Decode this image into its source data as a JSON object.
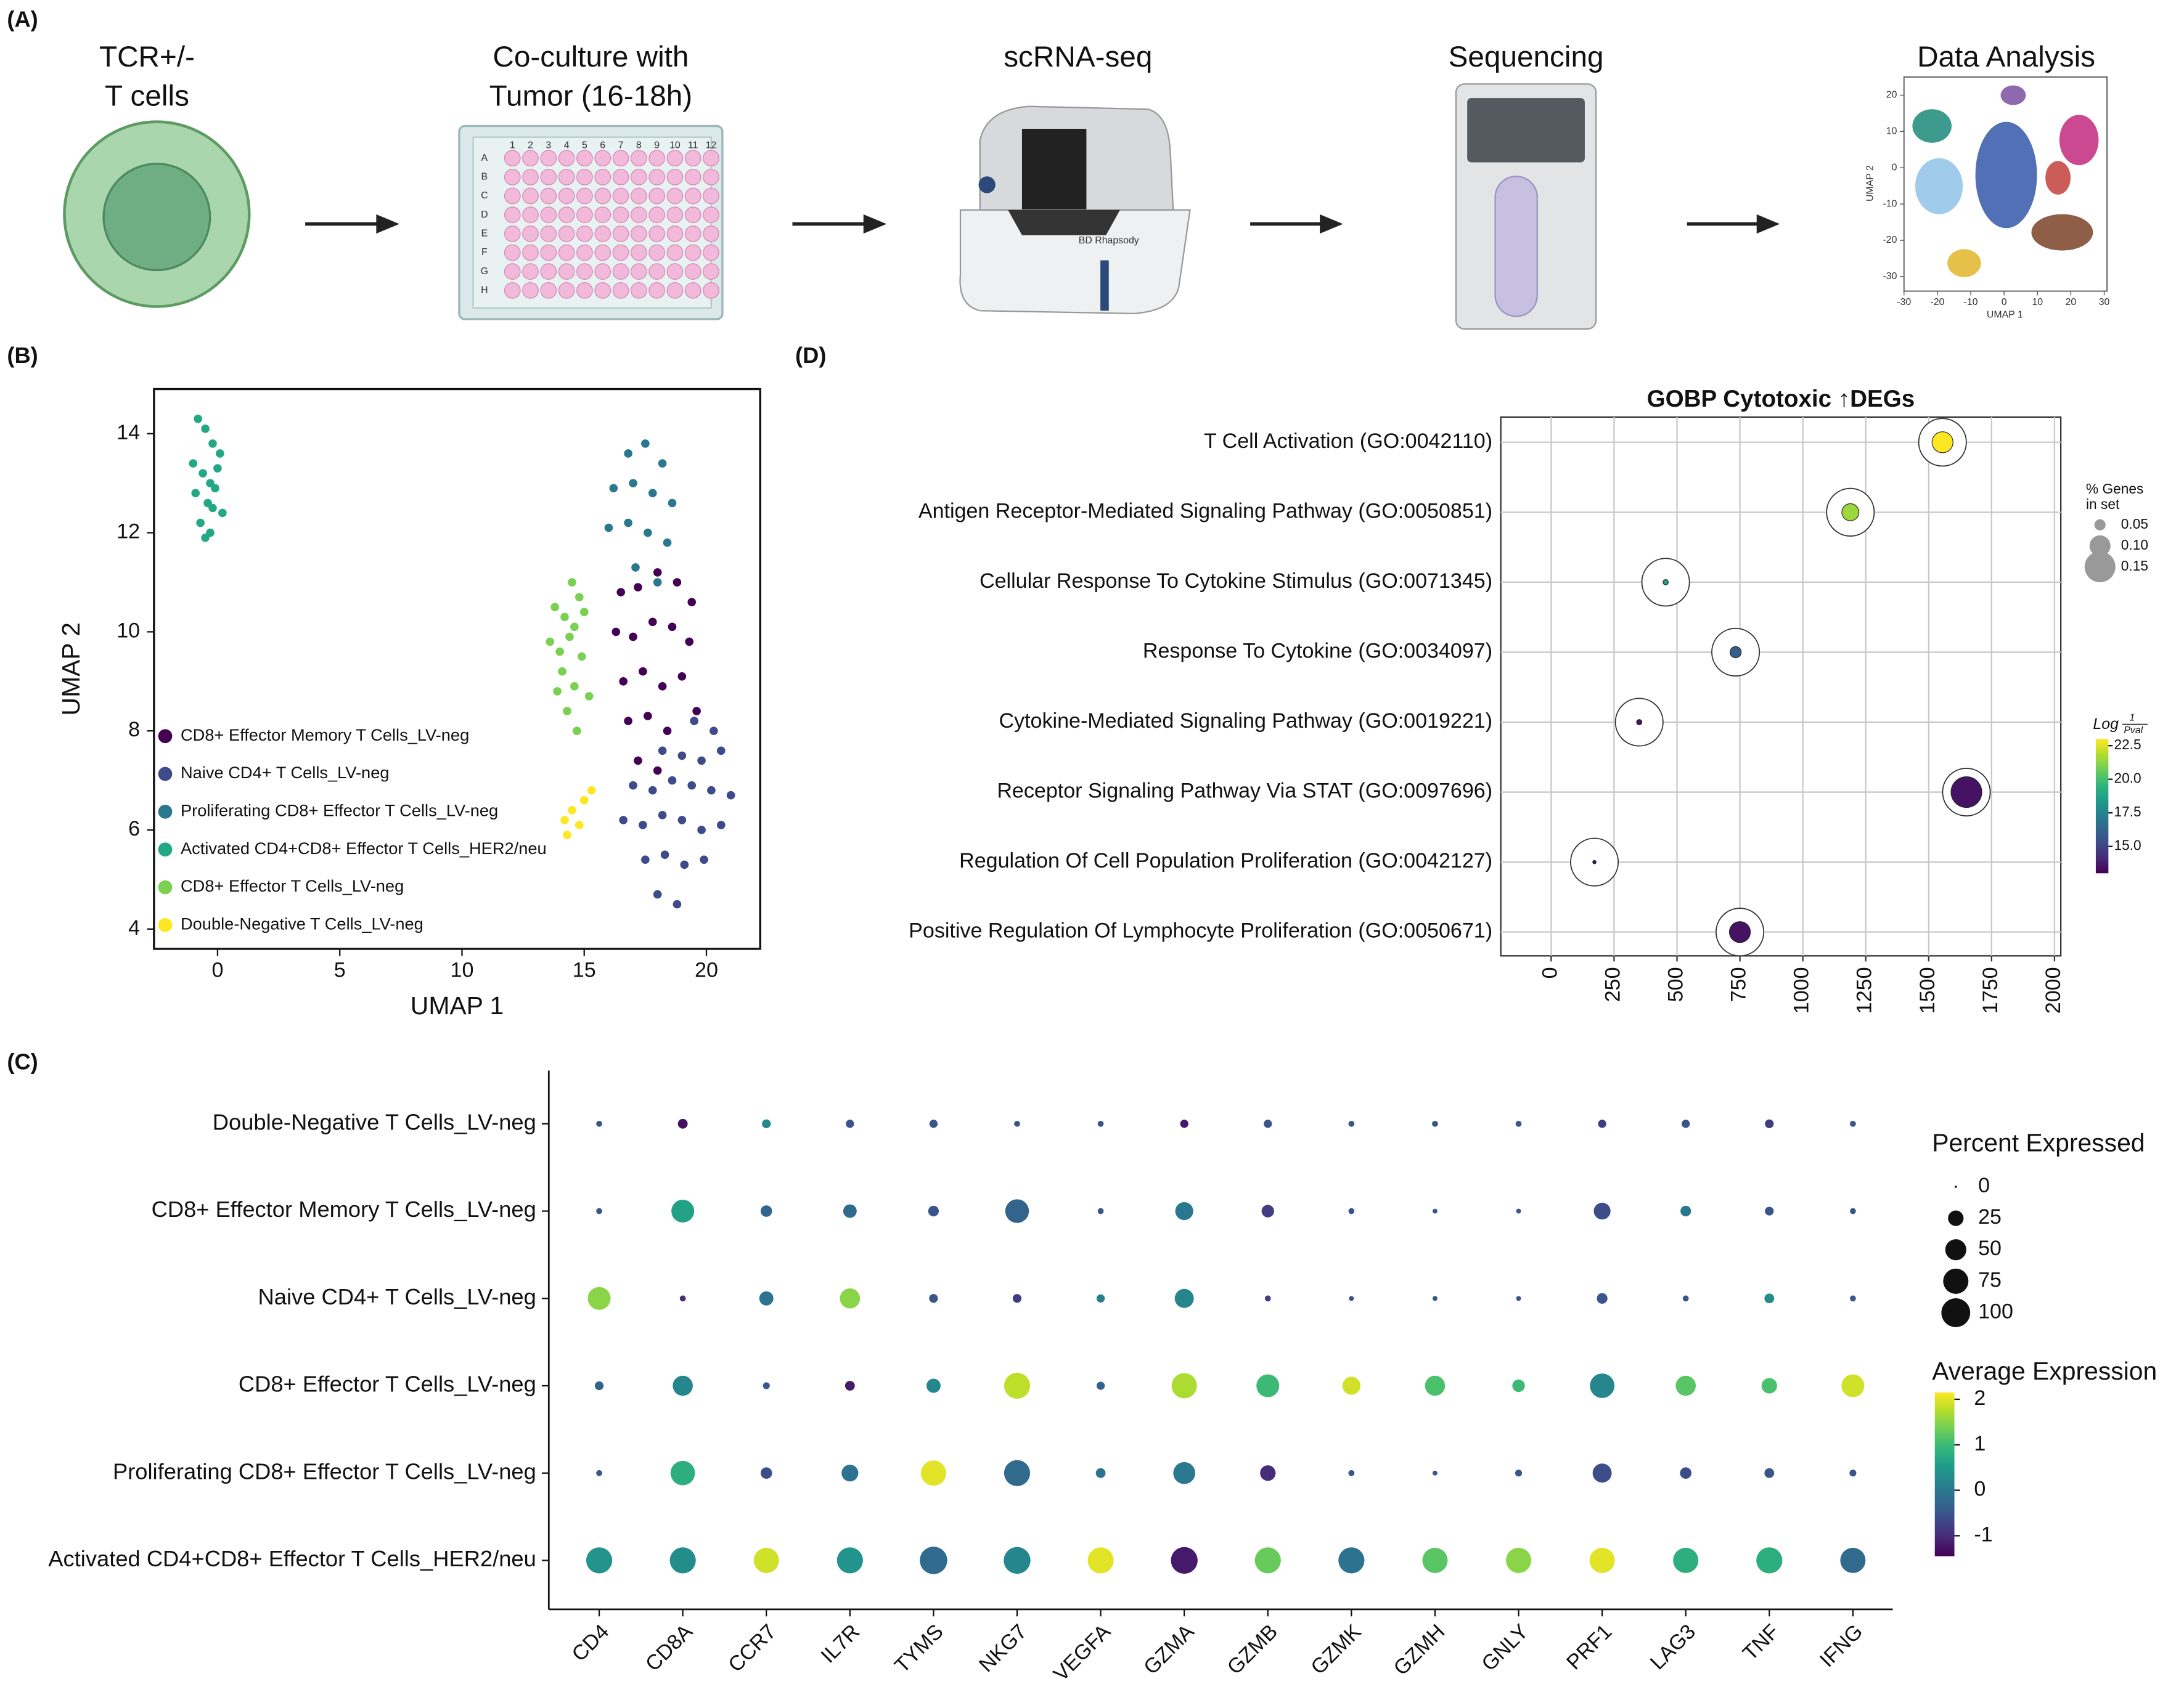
{
  "panel_labels": [
    "(A)",
    "(B)",
    "(C)",
    "(D)"
  ],
  "workflow": {
    "steps": [
      {
        "title": [
          "TCR+/-",
          "T cells"
        ]
      },
      {
        "title": [
          "Co-culture with",
          "Tumor (16-18h)"
        ]
      },
      {
        "title": [
          "scRNA-seq"
        ]
      },
      {
        "title": [
          "Sequencing"
        ]
      },
      {
        "title": [
          "Data Analysis"
        ]
      }
    ],
    "plate_columns": [
      1,
      2,
      3,
      4,
      5,
      6,
      7,
      8,
      9,
      10,
      11,
      12
    ],
    "plate_rows": [
      "A",
      "B",
      "C",
      "D",
      "E",
      "F",
      "G",
      "H"
    ],
    "instrument_label": "BD Rhapsody",
    "umap": {
      "xlabel": "UMAP 1",
      "ylabel": "UMAP 2",
      "xlim": [
        -30,
        30
      ],
      "ylim": [
        -34,
        25
      ],
      "xticks": [
        -30,
        -20,
        -10,
        0,
        10,
        20,
        30
      ],
      "yticks": [
        -30,
        -20,
        -10,
        0,
        10,
        20
      ]
    }
  },
  "chart_data": [
    {
      "type": "scatter",
      "xlabel": "UMAP 1",
      "ylabel": "UMAP 2",
      "xlim": [
        -2.6,
        22.2
      ],
      "ylim": [
        3.6,
        14.9
      ],
      "xticks": [
        0,
        5,
        10,
        15,
        20
      ],
      "yticks": [
        4,
        6,
        8,
        10,
        12,
        14
      ],
      "legend": "lower left",
      "series": [
        {
          "name": "CD8+ Effector Memory T Cells_LV-neg",
          "color": "#440154",
          "x": [
            16.5,
            17.2,
            18,
            18.8,
            19.4,
            16.3,
            17,
            17.8,
            18.6,
            19.3,
            16.6,
            17.4,
            18.2,
            19,
            16.8,
            17.6,
            18.4,
            19.6,
            17.2,
            18
          ],
          "y": [
            10.8,
            10.9,
            11.2,
            11.0,
            10.6,
            10.0,
            9.9,
            10.2,
            10.1,
            9.8,
            9.0,
            9.2,
            8.9,
            9.1,
            8.2,
            8.3,
            8.0,
            8.4,
            7.4,
            7.2
          ]
        },
        {
          "name": "Naive CD4+ T Cells_LV-neg",
          "color": "#3e4a89",
          "x": [
            19.5,
            20.3,
            18.2,
            19,
            19.8,
            20.6,
            17,
            17.8,
            18.6,
            19.4,
            20.2,
            21,
            16.6,
            17.4,
            18.2,
            19,
            19.8,
            20.6,
            17.5,
            18.3,
            19.1,
            19.9,
            18,
            18.8
          ],
          "y": [
            8.2,
            8.0,
            7.6,
            7.5,
            7.4,
            7.6,
            6.9,
            6.8,
            7.0,
            6.9,
            6.8,
            6.7,
            6.2,
            6.1,
            6.3,
            6.2,
            6.0,
            6.1,
            5.4,
            5.5,
            5.3,
            5.4,
            4.7,
            4.5
          ]
        },
        {
          "name": "Proliferating CD8+ Effector T Cells_LV-neg",
          "color": "#2a788e",
          "x": [
            16.8,
            17.5,
            18.2,
            16.2,
            17,
            17.8,
            18.6,
            16,
            16.8,
            17.6,
            18.4,
            17.1,
            18
          ],
          "y": [
            13.6,
            13.8,
            13.4,
            12.9,
            13.0,
            12.8,
            12.6,
            12.1,
            12.2,
            12.0,
            11.8,
            11.3,
            11.0
          ]
        },
        {
          "name": "Activated CD4+CD8+ Effector T Cells_HER2/neu",
          "color": "#22a884",
          "x": [
            -0.8,
            -0.5,
            -0.2,
            0.1,
            -1,
            -0.6,
            -0.3,
            0,
            -0.9,
            -0.4,
            -0.1,
            0.2,
            -0.7,
            -0.3,
            -0.5,
            -0.2
          ],
          "y": [
            14.3,
            14.1,
            13.8,
            13.6,
            13.4,
            13.2,
            13.0,
            13.3,
            12.8,
            12.6,
            12.9,
            12.4,
            12.2,
            12.0,
            11.9,
            12.5
          ]
        },
        {
          "name": "CD8+ Effector T Cells_LV-neg",
          "color": "#7ad151",
          "x": [
            14.5,
            14.8,
            13.8,
            14.2,
            14.6,
            15.0,
            13.6,
            14.0,
            14.4,
            14.9,
            14.1,
            14.6,
            13.9,
            14.3,
            15.2,
            14.7
          ],
          "y": [
            11.0,
            10.7,
            10.5,
            10.3,
            10.1,
            10.4,
            9.8,
            9.6,
            9.9,
            9.5,
            9.2,
            8.9,
            8.8,
            8.4,
            8.7,
            8.0
          ]
        },
        {
          "name": "Double-Negative T Cells_LV-neg",
          "color": "#fde725",
          "x": [
            14.2,
            14.5,
            14.8,
            14.3,
            15.3,
            15.0
          ],
          "y": [
            6.2,
            6.4,
            6.1,
            5.9,
            6.8,
            6.6
          ]
        }
      ]
    },
    {
      "type": "dotplot",
      "title": "GOBP Cytotoxic ↑DEGs",
      "categories": [
        "T Cell Activation (GO:0042110)",
        "Antigen Receptor-Mediated Signaling Pathway (GO:0050851)",
        "Cellular Response To Cytokine Stimulus (GO:0071345)",
        "Response To Cytokine (GO:0034097)",
        "Cytokine-Mediated Signaling Pathway (GO:0019221)",
        "Receptor Signaling Pathway Via STAT (GO:0097696)",
        "Regulation Of Cell Population Proliferation (GO:0042127)",
        "Positive Regulation Of Lymphocyte Proliferation (GO:0050671)"
      ],
      "values": [
        1555,
        1189,
        455,
        733,
        350,
        1650,
        172,
        750
      ],
      "size": [
        0.1,
        0.08,
        0.02,
        0.05,
        0.02,
        0.15,
        0.01,
        0.1
      ],
      "color_values": [
        23,
        21.5,
        18.5,
        16,
        13.5,
        13.5,
        13.5,
        13.5
      ],
      "xlim": [
        -200,
        2025
      ],
      "xticks": [
        0,
        250,
        500,
        750,
        1000,
        1250,
        1500,
        1750,
        2000
      ],
      "grid": true,
      "colormap": "viridis",
      "size_legend": {
        "title": [
          "% Genes",
          "in set"
        ],
        "values": [
          0.05,
          {
            "value": 0.1,
            "label": "0.10"
          },
          0.15
        ]
      },
      "colorbar": {
        "title": "Log",
        "numerator": 1,
        "denominator": "Pval",
        "clim": [
          13,
          23
        ],
        "ticks": [
          {
            "value": 15,
            "label": "15.0"
          },
          17.5,
          {
            "value": 20,
            "label": "20.0"
          },
          22.5
        ]
      }
    },
    {
      "type": "dotplot_matrix",
      "rows": [
        "Double-Negative T Cells_LV-neg",
        "CD8+ Effector Memory T Cells_LV-neg",
        "Naive CD4+ T Cells_LV-neg",
        "CD8+ Effector T Cells_LV-neg",
        "Proliferating CD8+ Effector T Cells_LV-neg",
        "Activated CD4+CD8+ Effector T Cells_HER2/neu"
      ],
      "columns": [
        "CD4",
        "CD8A",
        "CCR7",
        "IL7R",
        "TYMS",
        "NKG7",
        "VEGFA",
        "GZMA",
        "GZMB",
        "GZMK",
        "GZMH",
        "GNLY",
        "PRF1",
        "LAG3",
        "TNF",
        "IFNG"
      ],
      "percent": [
        [
          2,
          8,
          6,
          5,
          5,
          2,
          2,
          5,
          5,
          2,
          2,
          2,
          5,
          5,
          6,
          2
        ],
        [
          2,
          60,
          12,
          18,
          10,
          65,
          2,
          35,
          15,
          2,
          1,
          1,
          30,
          10,
          6,
          2
        ],
        [
          60,
          2,
          20,
          45,
          6,
          6,
          5,
          40,
          2,
          1,
          1,
          1,
          10,
          2,
          8,
          2
        ],
        [
          6,
          45,
          3,
          8,
          20,
          80,
          5,
          75,
          60,
          35,
          45,
          15,
          70,
          45,
          25,
          60
        ],
        [
          2,
          70,
          12,
          30,
          75,
          80,
          8,
          55,
          25,
          2,
          1,
          3,
          40,
          12,
          8,
          3
        ],
        [
          80,
          80,
          75,
          80,
          90,
          85,
          80,
          85,
          80,
          80,
          75,
          75,
          75,
          75,
          80,
          75
        ]
      ],
      "expression": [
        [
          -0.5,
          -1.3,
          0.2,
          -0.5,
          -0.5,
          -0.5,
          -0.5,
          -1.2,
          -0.5,
          -0.5,
          -0.5,
          -0.5,
          -0.8,
          -0.5,
          -0.8,
          -0.5
        ],
        [
          -0.5,
          0.6,
          -0.3,
          -0.2,
          -0.5,
          -0.3,
          -0.5,
          0,
          -0.8,
          -0.5,
          -0.5,
          -0.5,
          -0.6,
          0,
          -0.5,
          -0.5
        ],
        [
          1.5,
          -1,
          -0.1,
          1.5,
          -0.5,
          -0.8,
          0.1,
          0.2,
          -0.8,
          -0.5,
          -0.5,
          -0.5,
          -0.5,
          -0.5,
          0.3,
          -0.5
        ],
        [
          -0.3,
          0.2,
          -0.5,
          -1.2,
          0.2,
          1.8,
          -0.3,
          1.7,
          1,
          1.9,
          1.1,
          1,
          0.2,
          1.2,
          1.1,
          1.9
        ],
        [
          -0.5,
          0.8,
          -0.6,
          -0.1,
          2,
          -0.2,
          -0.1,
          0,
          -1,
          -0.5,
          -0.5,
          -0.5,
          -0.6,
          -0.6,
          -0.5,
          -0.5
        ],
        [
          0.4,
          0.3,
          1.9,
          0.4,
          -0.2,
          0.2,
          2,
          -1.2,
          1.3,
          -0.1,
          1.2,
          1.5,
          2,
          0.8,
          0.8,
          -0.2
        ]
      ],
      "colormap": "viridis",
      "size_legend": {
        "title": "Percent Expressed",
        "values": [
          0,
          25,
          50,
          75,
          100
        ]
      },
      "colorbar": {
        "title": "Average Expression",
        "clim": [
          -1.45,
          2.15
        ],
        "ticks": [
          -1,
          0,
          1,
          2
        ]
      }
    }
  ]
}
